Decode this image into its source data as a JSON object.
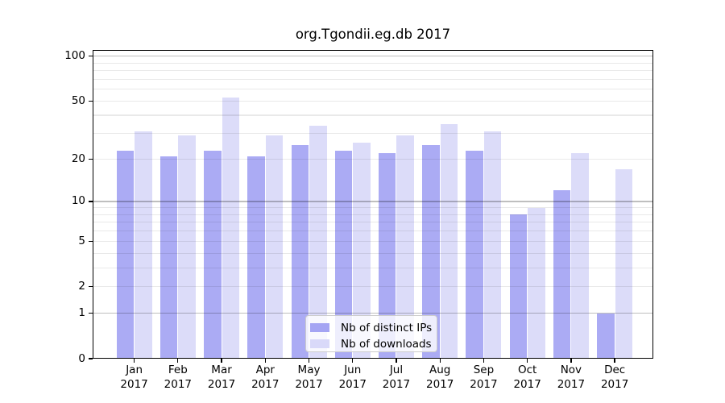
{
  "chart_data": {
    "type": "bar",
    "title": "org.Tgondii.eg.db 2017",
    "categories": [
      "Jan",
      "Feb",
      "Mar",
      "Apr",
      "May",
      "Jun",
      "Jul",
      "Aug",
      "Sep",
      "Oct",
      "Nov",
      "Dec"
    ],
    "category_year": "2017",
    "series": [
      {
        "name": "Nb of distinct IPs",
        "color": "#a4a4f3",
        "values": [
          23,
          21,
          23,
          21,
          25,
          23,
          22,
          25,
          23,
          8,
          12,
          1
        ]
      },
      {
        "name": "Nb of downloads",
        "color": "#d9d9f9",
        "values": [
          31,
          29,
          53,
          29,
          34,
          26,
          29,
          35,
          31,
          9,
          22,
          17
        ]
      }
    ],
    "yscale": "log1p",
    "ylim": [
      0,
      110
    ],
    "yticks": [
      0,
      1,
      2,
      5,
      10,
      20,
      50,
      100
    ],
    "ytick_labels": [
      "0",
      "1",
      "2",
      "5",
      "10",
      "20",
      "50",
      "100"
    ],
    "minor_gridlines": [
      2,
      3,
      4,
      5,
      6,
      7,
      8,
      9,
      20,
      30,
      40,
      50,
      60,
      70,
      80,
      90
    ],
    "major_gridlines": [
      1,
      10,
      100
    ],
    "legend_position": "lower center",
    "grid": "on"
  },
  "legend": {
    "entries": [
      {
        "label": "Nb of distinct IPs"
      },
      {
        "label": "Nb of downloads"
      }
    ]
  }
}
